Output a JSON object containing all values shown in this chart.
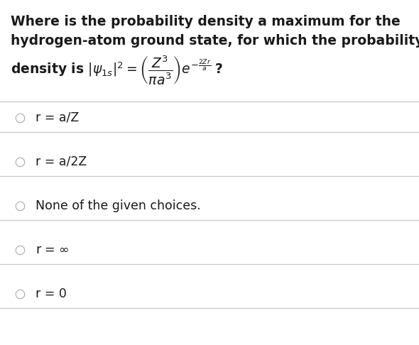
{
  "background_color": "#ffffff",
  "title_lines": [
    "Where is the probability density a maximum for the",
    "hydrogen-atom ground state, for which the probability"
  ],
  "formula_line": "density is $|\\psi_{1s}|^2 = \\left(\\dfrac{Z^3}{\\pi a^3}\\right) e^{-\\frac{2Zr}{a}}\\;$?",
  "choices": [
    "r = a/Z",
    "r = a/2Z",
    "None of the given choices.",
    "r = ∞",
    "r = 0"
  ],
  "font_size_title": 13.5,
  "font_size_choices": 12.5,
  "text_color": "#1a1a1a",
  "line_color": "#c8c8c8",
  "circle_edge_color": "#aaaaaa"
}
